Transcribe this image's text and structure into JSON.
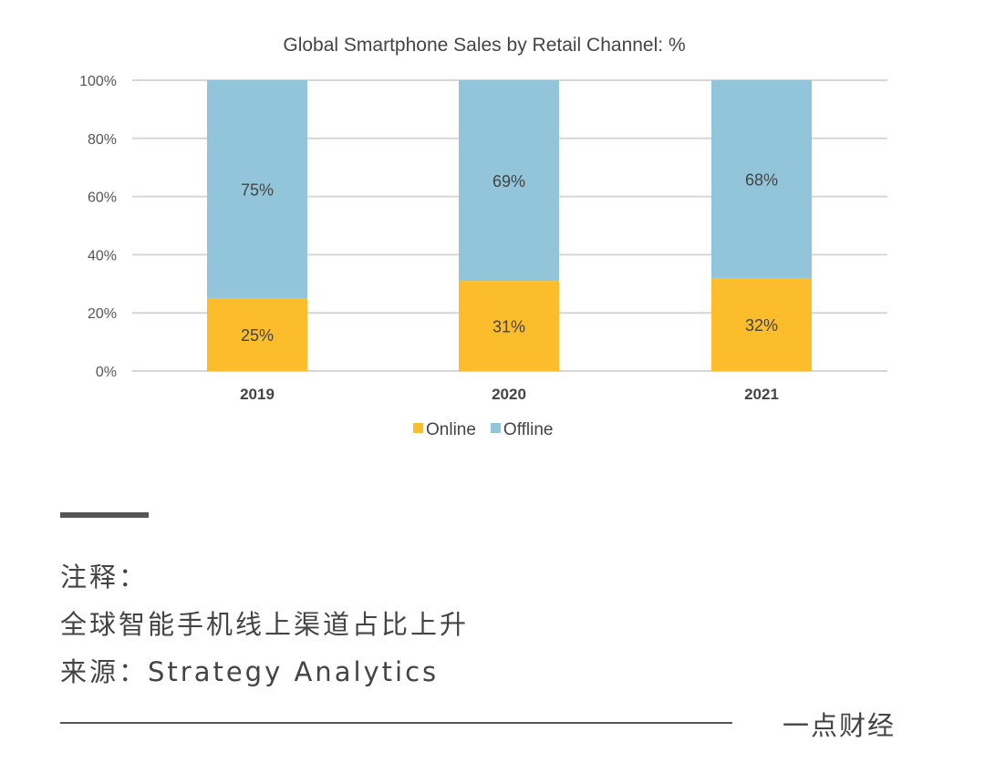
{
  "chart_data": {
    "type": "bar",
    "stacked": true,
    "title": "Global Smartphone Sales by Retail Channel: %",
    "categories": [
      "2019",
      "2020",
      "2021"
    ],
    "series": [
      {
        "name": "Online",
        "values": [
          25,
          31,
          32
        ],
        "labels": [
          "25%",
          "31%",
          "32%"
        ],
        "color": "#FBBD2C"
      },
      {
        "name": "Offline",
        "values": [
          75,
          69,
          68
        ],
        "labels": [
          "75%",
          "69%",
          "68%"
        ],
        "color": "#92C5D9"
      }
    ],
    "ylim": [
      0,
      100
    ],
    "yticks": [
      0,
      20,
      40,
      60,
      80,
      100
    ],
    "ytick_labels": [
      "0%",
      "20%",
      "40%",
      "60%",
      "80%",
      "100%"
    ],
    "grid": true,
    "legend": "bottom"
  },
  "notes": {
    "heading": "注释：",
    "line1": "全球智能手机线上渠道占比上升",
    "source": "来源：Strategy Analytics"
  },
  "brand": "一点财经"
}
